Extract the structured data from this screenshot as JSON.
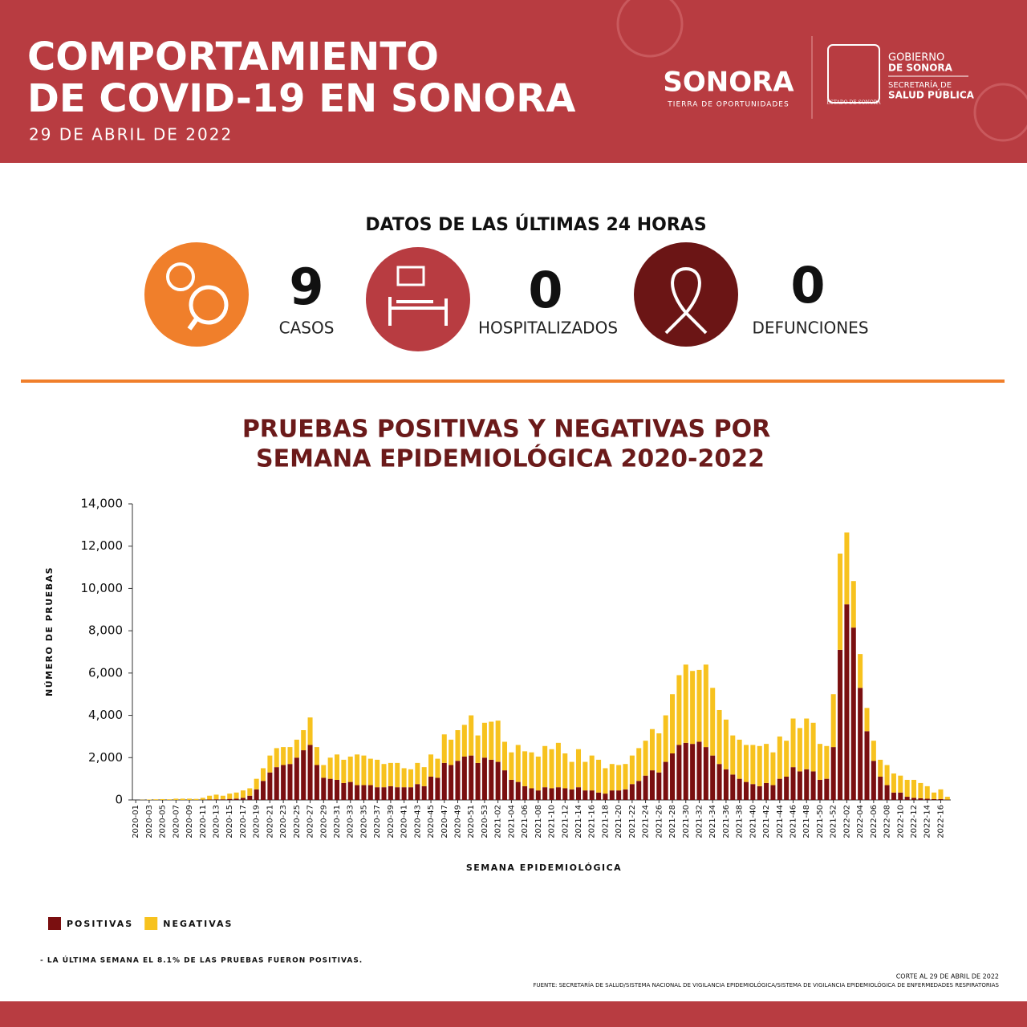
{
  "header": {
    "title": [
      "COMPORTAMIENTO",
      "DE COVID-19 EN SONORA"
    ],
    "date": "29 DE ABRIL DE 2022",
    "logo_main": "SONORA",
    "logo_tagline": "TIERRA DE OPORTUNIDADES",
    "shield": "ESTADO DE SONORA",
    "gov_line1": "GOBIERNO",
    "gov_line2": "DE SONORA",
    "gov_line3": "SECRETARÍA DE",
    "gov_line4": "SALUD PÚBLICA"
  },
  "stats": {
    "title": "DATOS DE LAS ÚLTIMAS 24 HORAS",
    "items": [
      {
        "value": 9,
        "label": "CASOS"
      },
      {
        "value": 0,
        "label": "HOSPITALIZADOS"
      },
      {
        "value": 0,
        "label": "DEFUNCIONES"
      }
    ]
  },
  "chart_data": {
    "type": "stacked_bar",
    "title": [
      "PRUEBAS POSITIVAS Y NEGATIVAS POR",
      "SEMANA EPIDEMIOLÓGICA 2020-2022"
    ],
    "x_label": "SEMANA EPIDEMIOLÓGICA",
    "y_label": "NÚMERO DE PRUEBAS",
    "categories": [
      "2020-01",
      null,
      "2020-03",
      null,
      "2020-05",
      null,
      "2020-07",
      null,
      "2020-09",
      null,
      "2020-11",
      null,
      "2020-13",
      null,
      "2020-15",
      null,
      "2020-17",
      null,
      "2020-19",
      null,
      "2020-21",
      null,
      "2020-23",
      null,
      "2020-25",
      null,
      "2020-27",
      null,
      "2020-29",
      null,
      "2020-31",
      null,
      "2020-33",
      null,
      "2020-35",
      null,
      "2020-37",
      null,
      "2020-39",
      null,
      "2020-41",
      null,
      "2020-43",
      null,
      "2020-45",
      null,
      "2020-47",
      null,
      "2020-49",
      null,
      "2020-51",
      null,
      "2020-53",
      null,
      "2021-02",
      null,
      "2021-04",
      null,
      "2021-06",
      null,
      "2021-08",
      null,
      "2021-10",
      null,
      "2021-12",
      null,
      "2021-14",
      null,
      "2021-16",
      null,
      "2021-18",
      null,
      "2021-20",
      null,
      "2021-22",
      null,
      "2021-24",
      null,
      "2021-26",
      null,
      "2021-28",
      null,
      "2021-30",
      null,
      "2021-32",
      null,
      "2021-34",
      null,
      "2021-36",
      null,
      "2021-38",
      null,
      "2021-40",
      null,
      "2021-42",
      null,
      "2021-44",
      null,
      "2021-46",
      null,
      "2021-48",
      null,
      "2021-50",
      null,
      "2021-52",
      null,
      "2022-02",
      null,
      "2022-04",
      null,
      "2022-06",
      null,
      "2022-08",
      null,
      "2022-10",
      null,
      "2022-12",
      null,
      "2022-14",
      null,
      "2022-16",
      null
    ],
    "series": [
      {
        "name": "POSITIVAS",
        "color": "#7a0f10",
        "values": [
          0,
          0,
          0,
          0,
          0,
          0,
          0,
          0,
          0,
          0,
          10,
          20,
          30,
          30,
          50,
          60,
          100,
          200,
          500,
          900,
          1300,
          1550,
          1650,
          1700,
          2000,
          2350,
          2600,
          1650,
          1050,
          1000,
          950,
          800,
          850,
          700,
          700,
          700,
          600,
          600,
          650,
          600,
          600,
          600,
          750,
          650,
          1100,
          1050,
          1750,
          1650,
          1850,
          2050,
          2100,
          1750,
          2000,
          1900,
          1800,
          1400,
          950,
          850,
          650,
          550,
          450,
          600,
          550,
          600,
          550,
          500,
          600,
          450,
          450,
          350,
          300,
          450,
          450,
          500,
          750,
          900,
          1150,
          1400,
          1300,
          1800,
          2200,
          2600,
          2700,
          2650,
          2750,
          2500,
          2100,
          1700,
          1450,
          1200,
          1000,
          850,
          750,
          650,
          800,
          700,
          1000,
          1100,
          1550,
          1350,
          1450,
          1350,
          950,
          1000,
          2500,
          7100,
          9250,
          8150,
          5300,
          3250,
          1850,
          1100,
          700,
          350,
          350,
          150,
          100,
          80,
          60,
          40,
          40,
          15
        ]
      },
      {
        "name": "NEGATIVAS",
        "color": "#f7c21e",
        "values": [
          0,
          10,
          20,
          30,
          40,
          30,
          60,
          60,
          60,
          50,
          90,
          180,
          220,
          170,
          250,
          290,
          350,
          350,
          500,
          600,
          800,
          900,
          850,
          800,
          850,
          950,
          1300,
          850,
          600,
          1000,
          1200,
          1100,
          1200,
          1450,
          1400,
          1250,
          1300,
          1100,
          1100,
          1150,
          900,
          850,
          1000,
          900,
          1050,
          900,
          1350,
          1200,
          1450,
          1500,
          1900,
          1300,
          1650,
          1800,
          1950,
          1350,
          1300,
          1750,
          1650,
          1700,
          1600,
          1950,
          1850,
          2100,
          1650,
          1300,
          1800,
          1350,
          1650,
          1550,
          1200,
          1250,
          1200,
          1200,
          1350,
          1550,
          1650,
          1950,
          1850,
          2200,
          2800,
          3300,
          3700,
          3450,
          3400,
          3900,
          3200,
          2550,
          2350,
          1850,
          1850,
          1750,
          1850,
          1900,
          1850,
          1550,
          2000,
          1700,
          2300,
          2050,
          2400,
          2300,
          1700,
          1550,
          2500,
          4550,
          3400,
          2200,
          1600,
          1100,
          950,
          800,
          950,
          900,
          800,
          800,
          850,
          720,
          590,
          310,
          460,
          135
        ]
      }
    ],
    "ylim": [
      0,
      14000
    ],
    "yticks": [
      0,
      {
        "value": 2000,
        "label": "2,000"
      },
      {
        "value": 4000,
        "label": "4,000"
      },
      {
        "value": 6000,
        "label": "6,000"
      },
      {
        "value": 8000,
        "label": "8,000"
      },
      {
        "value": 10000,
        "label": "10,000"
      },
      {
        "value": 12000,
        "label": "12,000"
      },
      {
        "value": 14000,
        "label": "14,000"
      }
    ],
    "grid": false,
    "legend": "bottom-left"
  },
  "notes": {
    "footnote": "- LA ÚLTIMA SEMANA EL 8.1% DE LAS PRUEBAS FUERON POSITIVAS.",
    "cutoff": "CORTE AL 29 DE ABRIL DE 2022",
    "source": "FUENTE: SECRETARÍA DE SALUD/SISTEMA NACIONAL DE VIGILANCIA EPIDEMIOLÓGICA/SISTEMA DE VIGILANCIA EPIDEMIOLÓGICA DE ENFERMEDADES RESPIRATORIAS"
  }
}
